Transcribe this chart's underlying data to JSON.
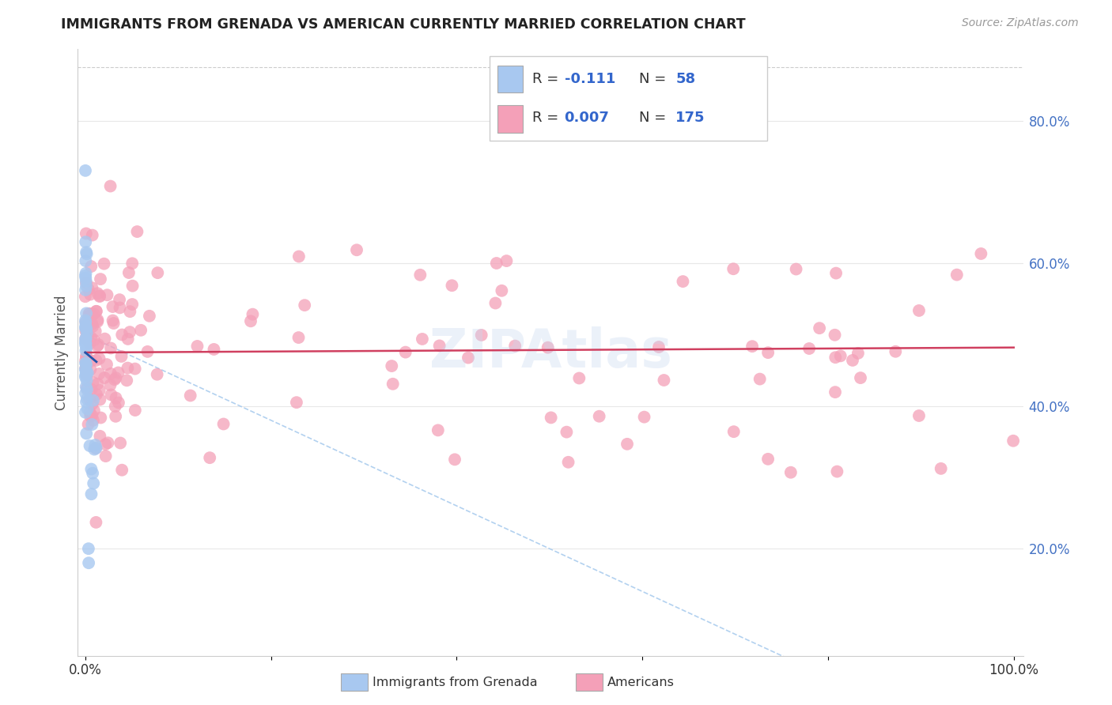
{
  "title": "IMMIGRANTS FROM GRENADA VS AMERICAN CURRENTLY MARRIED CORRELATION CHART",
  "source_text": "Source: ZipAtlas.com",
  "ylabel": "Currently Married",
  "blue_color": "#a8c8f0",
  "pink_color": "#f4a0b8",
  "blue_line_color": "#2255aa",
  "pink_line_color": "#d04060",
  "diag_line_color": "#aaccee",
  "legend_box_color": "#f0f4ff",
  "legend_border_color": "#cccccc",
  "text_color": "#333333",
  "blue_label_color": "#3366cc",
  "axis_color": "#cccccc",
  "grid_color": "#e8e8e8",
  "right_tick_color": "#4472c4",
  "watermark_color": "#c8d8f0"
}
